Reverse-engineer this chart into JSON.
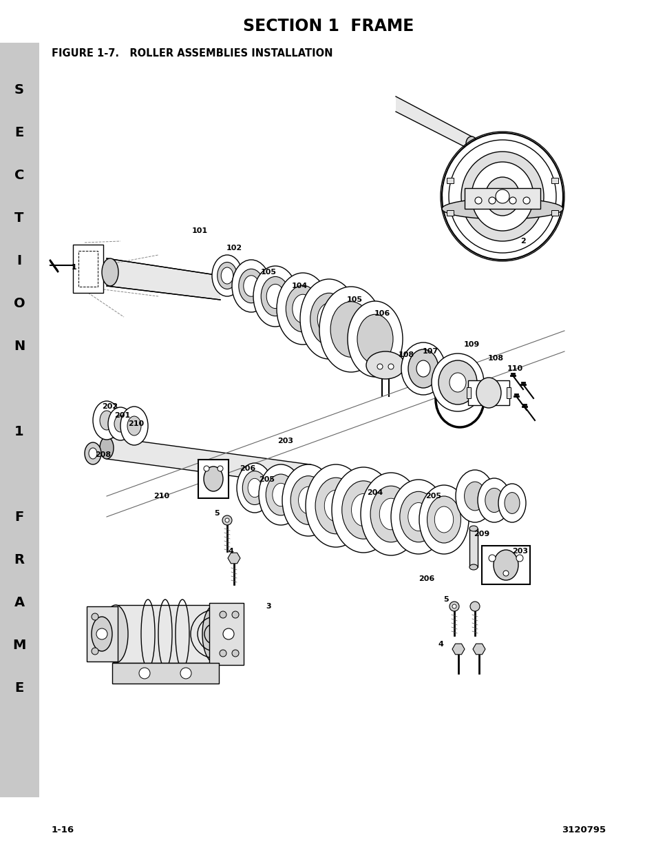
{
  "page_title": "SECTION 1  FRAME",
  "figure_title": "FIGURE 1-7.   ROLLER ASSEMBLIES INSTALLATION",
  "page_number_left": "1-16",
  "page_number_right": "3120795",
  "sidebar_text": [
    "S",
    "E",
    "C",
    "T",
    "I",
    "O",
    "N",
    "",
    "1",
    "",
    "F",
    "R",
    "A",
    "M",
    "E"
  ],
  "sidebar_bg": "#c8c8c8",
  "bg_color": "#ffffff",
  "title_fontsize": 17,
  "figure_title_fontsize": 10.5,
  "footer_fontsize": 9.5,
  "sidebar_fontsize": 14,
  "label_fontsize": 8
}
